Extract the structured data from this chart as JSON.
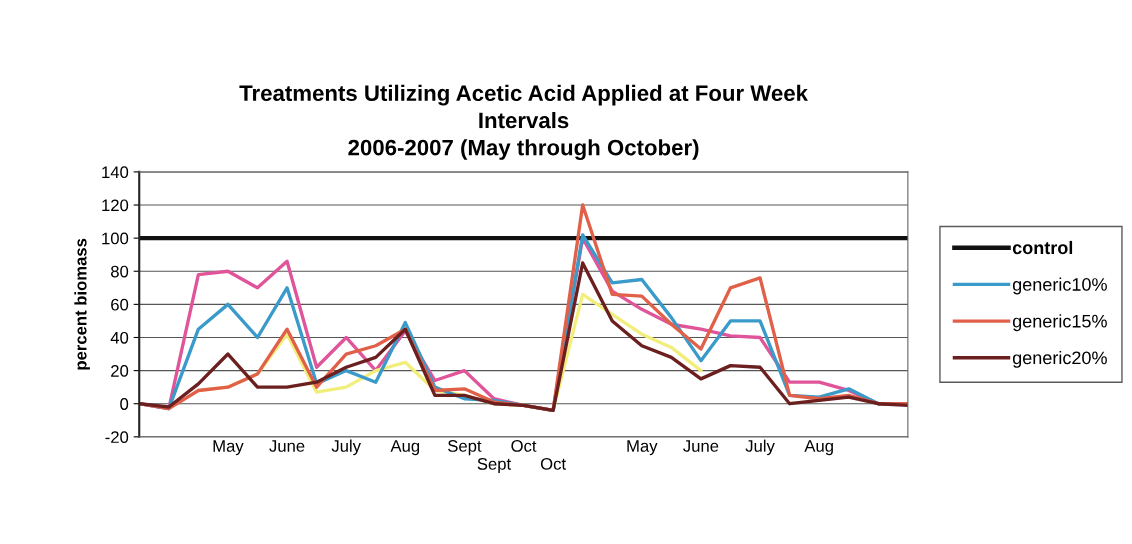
{
  "chart_data": {
    "type": "line",
    "title": "Treatments Utilizing Acetic Acid Applied at Four Week\nIntervals\n2006-2007 (May through October)",
    "ylabel": "percent biomass",
    "categories": [
      null,
      null,
      null,
      "May",
      null,
      "June",
      null,
      "July",
      null,
      "Aug",
      null,
      "Sept",
      "\nSept",
      "Oct",
      "\nOct",
      null,
      null,
      "May",
      null,
      "June",
      null,
      "July",
      null,
      "Aug",
      null,
      null,
      null
    ],
    "series": [
      {
        "name": "control",
        "color": "#111111",
        "values": [
          100,
          100,
          100,
          100,
          100,
          100,
          100,
          100,
          100,
          100,
          100,
          100,
          100,
          100,
          100,
          100,
          100,
          100,
          100,
          100,
          100,
          100,
          100,
          100,
          100,
          100,
          100
        ]
      },
      {
        "color": "#e0559a",
        "values": [
          0,
          -3,
          78,
          80,
          70,
          86,
          22,
          40,
          20,
          44,
          14,
          20,
          3,
          -1,
          -4,
          100,
          68,
          57,
          48,
          45,
          41,
          40,
          13,
          13,
          8,
          0,
          0
        ]
      },
      {
        "color": "#f2ee7c",
        "values": [
          null,
          null,
          8,
          10,
          18,
          42,
          7,
          10,
          20,
          25,
          8,
          5,
          0,
          -1,
          -4,
          66,
          54,
          42,
          34,
          20,
          null,
          null,
          null,
          null,
          null,
          null,
          null
        ]
      },
      {
        "name": "generic10%",
        "color": "#3a9ac9",
        "values": [
          0,
          -3,
          45,
          60,
          40,
          70,
          12,
          20,
          13,
          49,
          10,
          3,
          2,
          -1,
          -4,
          102,
          73,
          75,
          52,
          26,
          50,
          50,
          5,
          4,
          9,
          0,
          0
        ]
      },
      {
        "name": "generic15%",
        "color": "#e0604a",
        "values": [
          0,
          -3,
          8,
          10,
          18,
          45,
          10,
          30,
          35,
          45,
          8,
          9,
          1,
          -1,
          -4,
          120,
          66,
          65,
          48,
          33,
          70,
          76,
          5,
          3,
          5,
          0,
          0
        ]
      },
      {
        "name": "generic20%",
        "color": "#6b1f1f",
        "values": [
          0,
          -2,
          12,
          30,
          10,
          10,
          13,
          22,
          28,
          45,
          5,
          5,
          0,
          -1,
          -4,
          85,
          50,
          35,
          28,
          15,
          23,
          22,
          0,
          2,
          4,
          0,
          -1
        ]
      }
    ],
    "ylim": [
      -20,
      140
    ],
    "yticks": [
      -20,
      0,
      20,
      40,
      60,
      80,
      100,
      120,
      140
    ],
    "grid": "y",
    "legend": "right"
  }
}
